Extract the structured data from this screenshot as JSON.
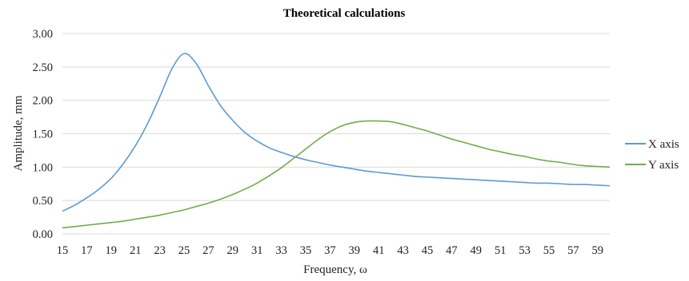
{
  "chart_data": {
    "type": "line",
    "title": "Theoretical calculations",
    "xlabel": "Frequency, ω",
    "ylabel": "Amplitude, mm",
    "xlim": [
      15,
      60
    ],
    "ylim": [
      0,
      3
    ],
    "x_ticks": [
      15,
      17,
      19,
      21,
      23,
      25,
      27,
      29,
      31,
      33,
      35,
      37,
      39,
      41,
      43,
      45,
      47,
      49,
      51,
      53,
      55,
      57,
      59
    ],
    "y_ticks": [
      "0.00",
      "0.50",
      "1.00",
      "1.50",
      "2.00",
      "2.50",
      "3.00"
    ],
    "grid": "horizontal",
    "legend_position": "right",
    "series": [
      {
        "name": "X axis",
        "color": "#5b9bd5",
        "x": [
          15,
          16,
          17,
          18,
          19,
          20,
          21,
          22,
          23,
          24,
          25,
          26,
          27,
          28,
          29,
          30,
          31,
          32,
          33,
          34,
          35,
          36,
          37,
          38,
          39,
          40,
          41,
          42,
          43,
          44,
          45,
          46,
          47,
          48,
          49,
          50,
          51,
          52,
          53,
          54,
          55,
          56,
          57,
          58,
          59,
          60
        ],
        "values": [
          0.34,
          0.43,
          0.54,
          0.67,
          0.83,
          1.05,
          1.32,
          1.65,
          2.05,
          2.47,
          2.7,
          2.55,
          2.22,
          1.92,
          1.7,
          1.52,
          1.39,
          1.29,
          1.22,
          1.16,
          1.11,
          1.07,
          1.03,
          1.0,
          0.97,
          0.94,
          0.92,
          0.9,
          0.88,
          0.86,
          0.85,
          0.84,
          0.83,
          0.82,
          0.81,
          0.8,
          0.79,
          0.78,
          0.77,
          0.76,
          0.76,
          0.75,
          0.74,
          0.74,
          0.73,
          0.72
        ]
      },
      {
        "name": "Y axis",
        "color": "#70ad47",
        "x": [
          15,
          16,
          17,
          18,
          19,
          20,
          21,
          22,
          23,
          24,
          25,
          26,
          27,
          28,
          29,
          30,
          31,
          32,
          33,
          34,
          35,
          36,
          37,
          38,
          39,
          40,
          41,
          42,
          43,
          44,
          45,
          46,
          47,
          48,
          49,
          50,
          51,
          52,
          53,
          54,
          55,
          56,
          57,
          58,
          59,
          60
        ],
        "values": [
          0.09,
          0.11,
          0.13,
          0.15,
          0.17,
          0.19,
          0.22,
          0.25,
          0.28,
          0.32,
          0.36,
          0.41,
          0.46,
          0.52,
          0.59,
          0.67,
          0.76,
          0.87,
          0.99,
          1.13,
          1.27,
          1.41,
          1.53,
          1.62,
          1.67,
          1.69,
          1.69,
          1.68,
          1.64,
          1.59,
          1.54,
          1.48,
          1.42,
          1.37,
          1.32,
          1.27,
          1.23,
          1.19,
          1.16,
          1.12,
          1.09,
          1.07,
          1.04,
          1.02,
          1.01,
          1.0
        ]
      }
    ]
  }
}
